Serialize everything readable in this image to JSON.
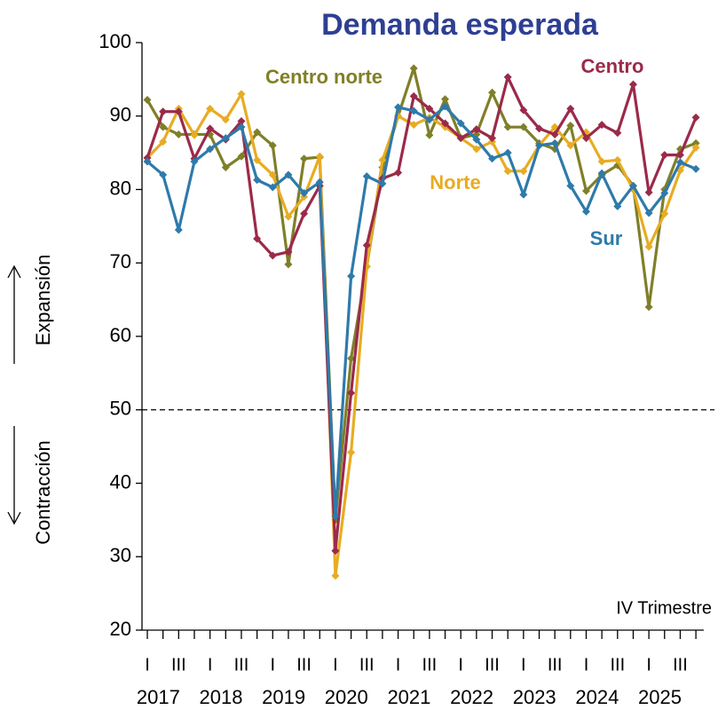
{
  "chart_data": {
    "type": "line",
    "title": "Demanda esperada",
    "annotations": [
      "IV Trimestre"
    ],
    "y_axis_labels": [
      "Expansión",
      "Contracción"
    ],
    "reference_line": 50,
    "categories": [
      "I",
      null,
      "III",
      null,
      "I",
      null,
      "III",
      null,
      "I",
      null,
      "III",
      null,
      "I",
      null,
      "III",
      null,
      "I",
      null,
      "III",
      null,
      "I",
      null,
      "III",
      null,
      "I",
      null,
      "III",
      null,
      "I",
      null,
      "III",
      null,
      "I",
      null,
      "III",
      null
    ],
    "year_labels": [
      "2017",
      "2018",
      "2019",
      "2020",
      "2021",
      "2022",
      "2023",
      "2024",
      "2025"
    ],
    "series": [
      {
        "name": "Centro norte",
        "color": "#7f7f28",
        "values": [
          92.2,
          88.5,
          87.5,
          87.5,
          87.5,
          83,
          84.5,
          87.8,
          86,
          69.8,
          84.2,
          84.4,
          35,
          57,
          69.5,
          83,
          90,
          96.5,
          87.4,
          92.3,
          87,
          87.5,
          93.2,
          88.5,
          88.5,
          86.3,
          85.5,
          88.7,
          79.8,
          82,
          83.3,
          80.5,
          64,
          80,
          85.5,
          86.3
        ]
      },
      {
        "name": "Norte",
        "color": "#e8ac22",
        "values": [
          84.3,
          86.5,
          91,
          87.4,
          91,
          89.5,
          93,
          84,
          82,
          76.3,
          79,
          84.5,
          27.4,
          44.2,
          69.5,
          84,
          90,
          88.8,
          89.8,
          88.5,
          87,
          85.5,
          86.5,
          82.5,
          82.5,
          86,
          88.5,
          86,
          87.8,
          83.8,
          84,
          80,
          72.2,
          76.7,
          82.6,
          85.7
        ]
      },
      {
        "name": "Centro",
        "color": "#9b2a4a",
        "values": [
          84.3,
          90.6,
          90.6,
          84.2,
          88.3,
          86.8,
          89.3,
          73.3,
          71,
          71.5,
          76.7,
          80.5,
          30.8,
          52.3,
          72.4,
          81.5,
          82.3,
          92.7,
          91,
          89,
          87,
          88.2,
          87,
          95.3,
          90.8,
          88.3,
          87.5,
          91,
          87,
          88.8,
          87.7,
          94.3,
          79.6,
          84.7,
          84.7,
          89.8
        ]
      },
      {
        "name": "Sur",
        "color": "#2e7aab",
        "values": [
          83.8,
          82,
          74.5,
          83.8,
          85.5,
          87,
          88.5,
          81.3,
          80.3,
          82,
          79.5,
          81,
          35.5,
          68.2,
          81.8,
          80.8,
          91.2,
          90.7,
          89.5,
          91.3,
          89,
          86.8,
          84.2,
          85,
          79.3,
          86,
          86.3,
          80.5,
          77,
          82.2,
          77.7,
          80.5,
          76.8,
          79.5,
          83.7,
          82.8
        ]
      }
    ],
    "ylim": [
      20,
      100
    ],
    "yticks": [
      20,
      30,
      40,
      50,
      60,
      70,
      80,
      90,
      100
    ],
    "grid": false
  }
}
